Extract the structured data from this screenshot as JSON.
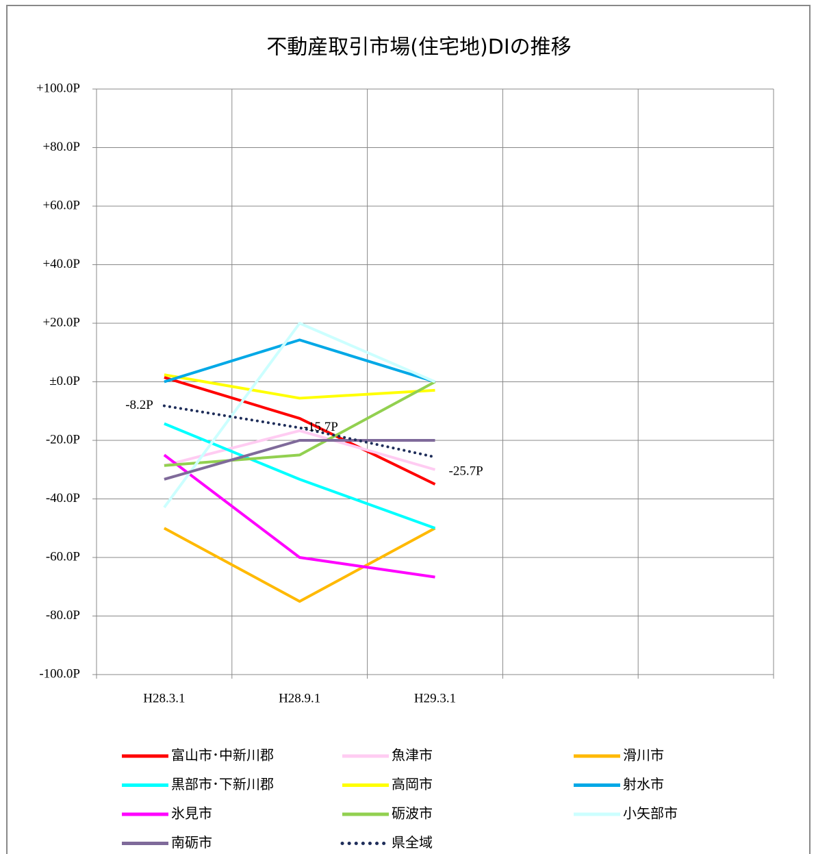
{
  "chart_data": {
    "type": "line",
    "title": "不動産取引市場(住宅地)DIの推移",
    "categories": [
      "H28.3.1",
      "H28.9.1",
      "H29.3.1",
      null,
      null
    ],
    "ylim": [
      -100,
      100
    ],
    "yticks": [
      {
        "value": -100,
        "label": "-100.0P"
      },
      {
        "value": -80,
        "label": "-80.0P"
      },
      {
        "value": -60,
        "label": "-60.0P"
      },
      {
        "value": -40,
        "label": "-40.0P"
      },
      {
        "value": -20,
        "label": "-20.0P"
      },
      {
        "value": 0,
        "label": "±0.0P"
      },
      {
        "value": 20,
        "label": "+20.0P"
      },
      {
        "value": 40,
        "label": "+40.0P"
      },
      {
        "value": 60,
        "label": "+60.0P"
      },
      {
        "value": 80,
        "label": "+80.0P"
      },
      {
        "value": 100,
        "label": "+100.0P"
      }
    ],
    "grid": true,
    "series": [
      {
        "name": "富山市･中新川郡",
        "color": "#ff0000",
        "values": [
          1.5,
          -12.5,
          -35,
          null,
          null
        ]
      },
      {
        "name": "魚津市",
        "color": "#ffccf2",
        "values": [
          -28.6,
          -16.7,
          -30,
          null,
          null
        ]
      },
      {
        "name": "滑川市",
        "color": "#ffb900",
        "values": [
          -50,
          -75,
          -50,
          null,
          null
        ]
      },
      {
        "name": "黒部市･下新川郡",
        "color": "#00ffff",
        "values": [
          -14.3,
          -33.3,
          -50,
          null,
          null
        ]
      },
      {
        "name": "高岡市",
        "color": "#ffff00",
        "values": [
          2.4,
          -5.6,
          -2.9,
          null,
          null
        ]
      },
      {
        "name": "射水市",
        "color": "#00a8e6",
        "values": [
          0,
          14.3,
          0,
          null,
          null
        ]
      },
      {
        "name": "氷見市",
        "color": "#ff00ff",
        "values": [
          -25,
          -60,
          -66.7,
          null,
          null
        ]
      },
      {
        "name": "砺波市",
        "color": "#92d050",
        "values": [
          -28.6,
          -25,
          0,
          null,
          null
        ]
      },
      {
        "name": "小矢部市",
        "color": "#ccffff",
        "values": [
          -42.9,
          20,
          0,
          null,
          null
        ]
      },
      {
        "name": "南砺市",
        "color": "#7f6a9a",
        "values": [
          -33.3,
          -20,
          -20,
          null,
          null
        ]
      },
      {
        "name": "県全域",
        "color": "#1f2e5a",
        "dotted": true,
        "values": [
          -8.2,
          -15.7,
          -25.7,
          null,
          null
        ],
        "value_labels": [
          "-8.2P",
          "-15.7P",
          "-25.7P"
        ]
      }
    ]
  }
}
